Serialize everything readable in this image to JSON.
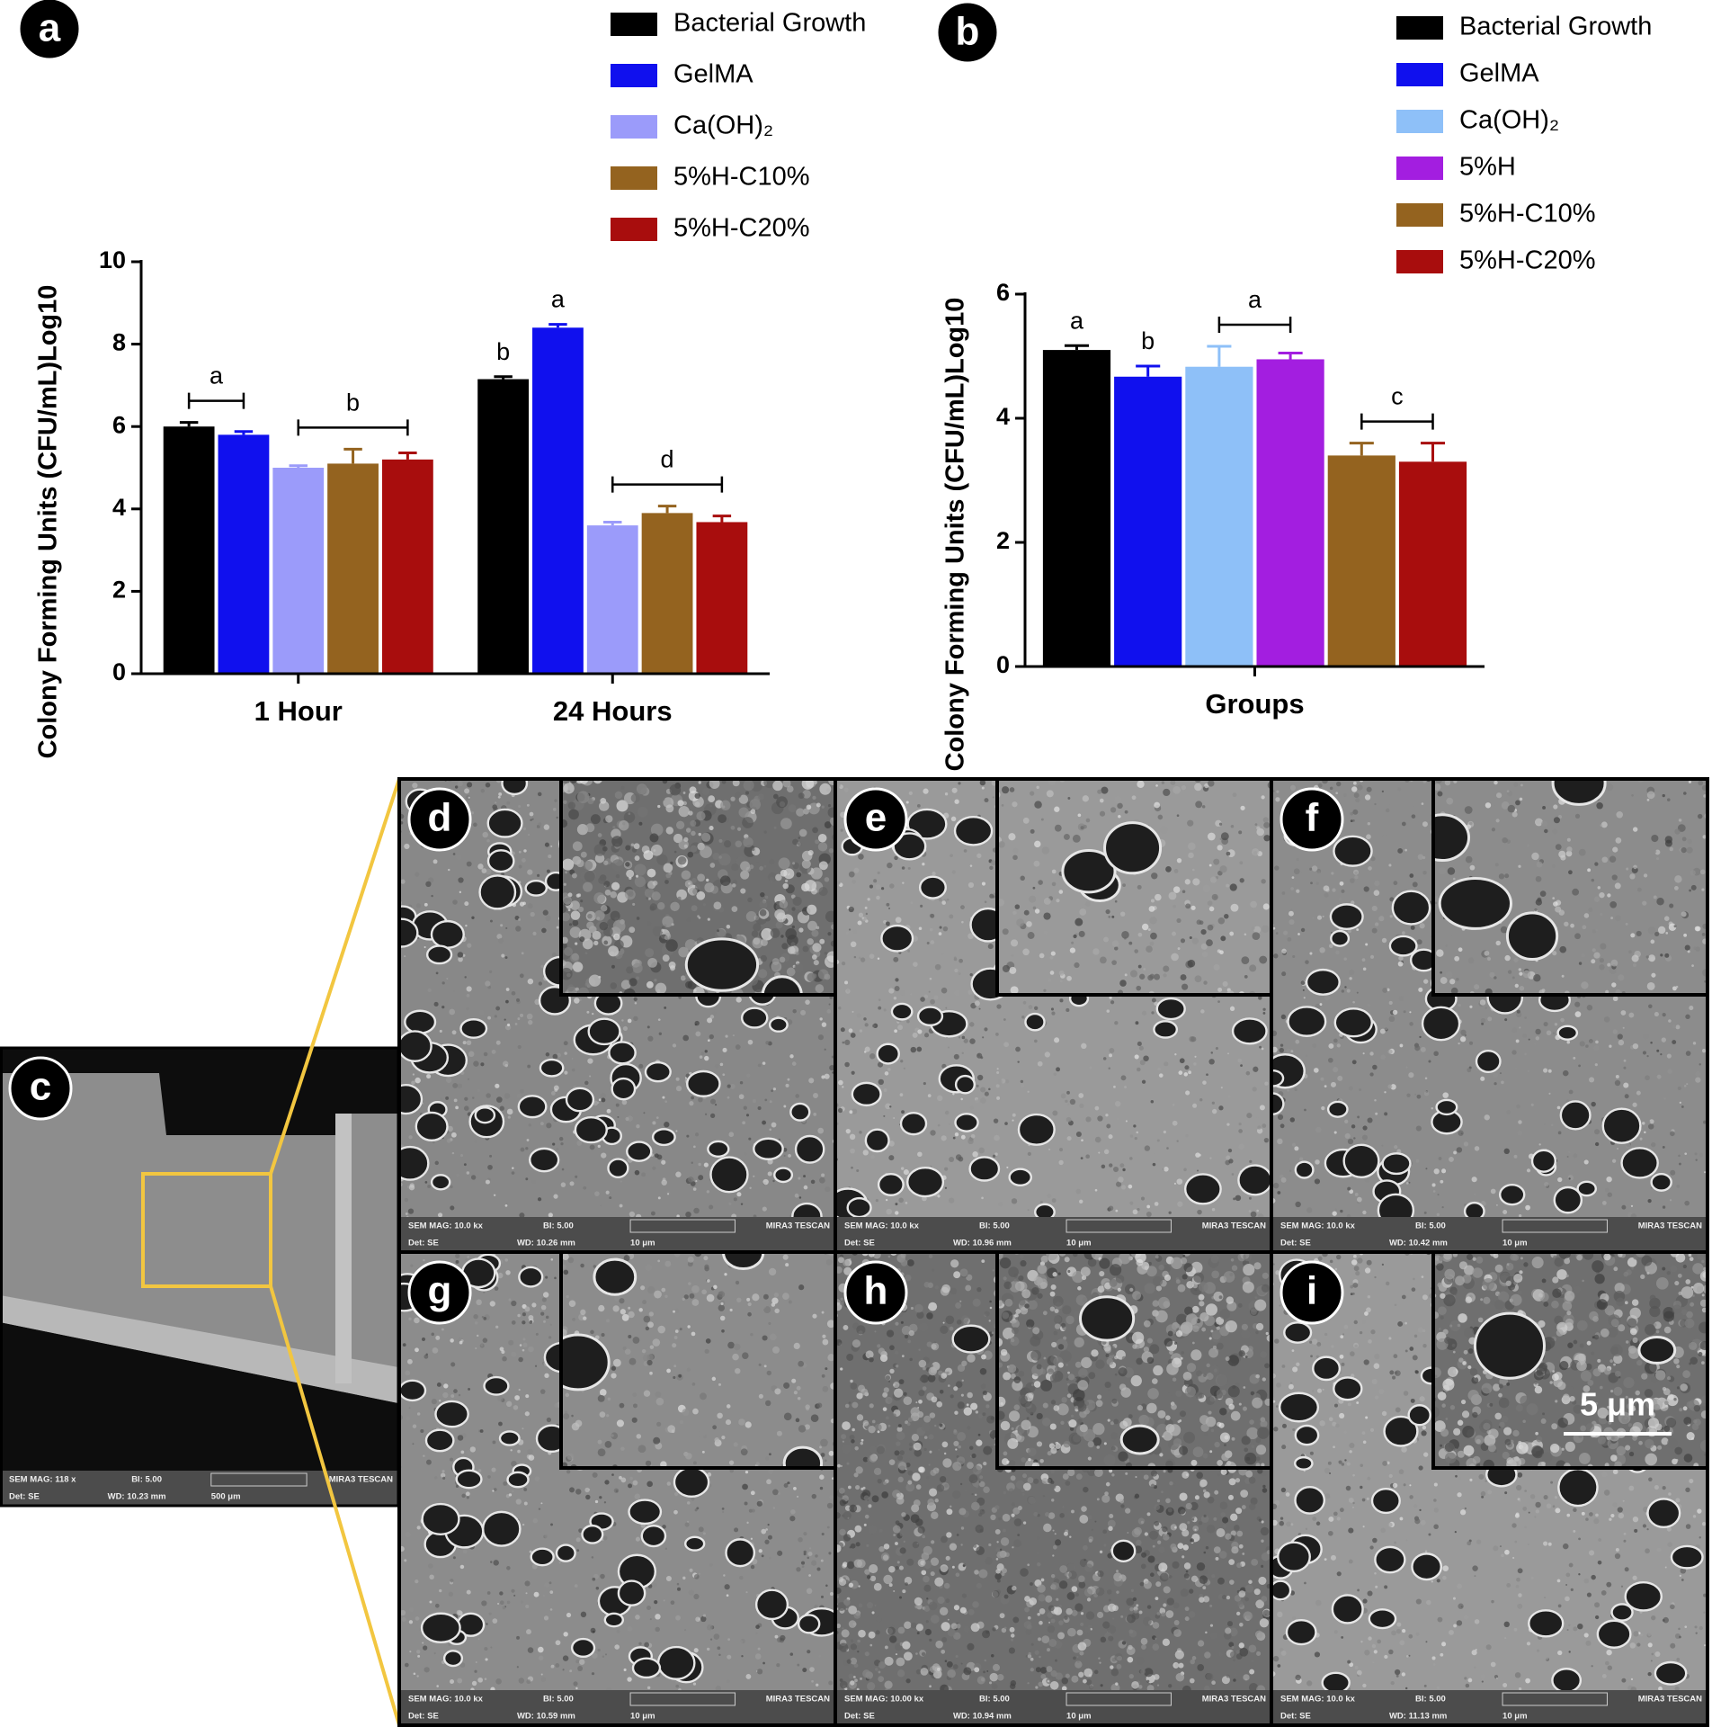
{
  "chart_data": [
    {
      "type": "bar",
      "panel": "a",
      "y_label": "Colony Forming Units (CFU/mL)Log10",
      "categories": [
        "1 Hour",
        "24 Hours"
      ],
      "series": [
        {
          "name": "Bacterial Growth",
          "color": "#000000",
          "values": [
            6.0,
            7.15
          ],
          "errors": [
            0.1,
            0.06
          ]
        },
        {
          "name": "GelMA",
          "color": "#1010ee",
          "values": [
            5.8,
            8.4
          ],
          "errors": [
            0.08,
            0.08
          ]
        },
        {
          "name": "Ca(OH)₂",
          "color": "#9b9bfa",
          "values": [
            5.0,
            3.6
          ],
          "errors": [
            0.05,
            0.08
          ]
        },
        {
          "name": "5%H-C10%",
          "color": "#94631f",
          "values": [
            5.1,
            3.9
          ],
          "errors": [
            0.35,
            0.17
          ]
        },
        {
          "name": "5%H-C20%",
          "color": "#a80d0d",
          "values": [
            5.2,
            3.68
          ],
          "errors": [
            0.16,
            0.15
          ]
        }
      ],
      "ylim": [
        0,
        10
      ],
      "yticks": [
        0,
        2,
        4,
        6,
        8,
        10
      ],
      "annotations": [
        {
          "text": "a",
          "category": 0,
          "series": [
            0,
            1
          ]
        },
        {
          "text": "b",
          "category": 0,
          "series": [
            2,
            4
          ]
        },
        {
          "text": "b",
          "category": 1,
          "series": [
            0
          ]
        },
        {
          "text": "a",
          "category": 1,
          "series": [
            1
          ]
        },
        {
          "text": "d",
          "category": 1,
          "series": [
            2,
            4
          ]
        }
      ]
    },
    {
      "type": "bar",
      "panel": "b",
      "y_label": "Colony Forming Units (CFU/mL)Log10",
      "categories": [
        "Groups"
      ],
      "series": [
        {
          "name": "Bacterial Growth",
          "color": "#000000",
          "values": [
            5.1
          ],
          "errors": [
            0.07
          ]
        },
        {
          "name": "GelMA",
          "color": "#1010ee",
          "values": [
            4.67
          ],
          "errors": [
            0.17
          ]
        },
        {
          "name": "Ca(OH)₂",
          "color": "#8ec0f8",
          "values": [
            4.83
          ],
          "errors": [
            0.33
          ]
        },
        {
          "name": "5%H",
          "color": "#a31ee0",
          "values": [
            4.95
          ],
          "errors": [
            0.1
          ]
        },
        {
          "name": "5%H-C10%",
          "color": "#94631f",
          "values": [
            3.4
          ],
          "errors": [
            0.2
          ]
        },
        {
          "name": "5%H-C20%",
          "color": "#a80d0d",
          "values": [
            3.3
          ],
          "errors": [
            0.3
          ]
        }
      ],
      "ylim": [
        0,
        6
      ],
      "yticks": [
        0,
        2,
        4,
        6
      ],
      "annotations": [
        {
          "text": "a",
          "category": 0,
          "series": [
            0
          ]
        },
        {
          "text": "b",
          "category": 0,
          "series": [
            1
          ]
        },
        {
          "text": "a",
          "category": 0,
          "series": [
            2,
            3
          ]
        },
        {
          "text": "c",
          "category": 0,
          "series": [
            4,
            5
          ]
        }
      ]
    }
  ],
  "sem_panels": [
    {
      "label": "c",
      "mag": "SEM MAG: 118 x",
      "bi": "BI: 5.00",
      "brand": "MIRA3 TESCAN",
      "det": "Det: SE",
      "wd": "WD: 10.23 mm",
      "scale": "500 μm"
    },
    {
      "label": "d",
      "mag": "SEM MAG: 10.0 kx",
      "bi": "BI: 5.00",
      "brand": "MIRA3 TESCAN",
      "det": "Det: SE",
      "wd": "WD: 10.26 mm",
      "scale": "10 μm"
    },
    {
      "label": "e",
      "mag": "SEM MAG: 10.0 kx",
      "bi": "BI: 5.00",
      "brand": "MIRA3 TESCAN",
      "det": "Det: SE",
      "wd": "WD: 10.96 mm",
      "scale": "10 μm"
    },
    {
      "label": "f",
      "mag": "SEM MAG: 10.0 kx",
      "bi": "BI: 5.00",
      "brand": "MIRA3 TESCAN",
      "det": "Det: SE",
      "wd": "WD: 10.42 mm",
      "scale": "10 μm"
    },
    {
      "label": "g",
      "mag": "SEM MAG: 10.0 kx",
      "bi": "BI: 5.00",
      "brand": "MIRA3 TESCAN",
      "det": "Det: SE",
      "wd": "WD: 10.59 mm",
      "scale": "10 μm"
    },
    {
      "label": "h",
      "mag": "SEM MAG: 10.00 kx",
      "bi": "BI: 5.00",
      "brand": "MIRA3 TESCAN",
      "det": "Det: SE",
      "wd": "WD: 10.94 mm",
      "scale": "10 μm"
    },
    {
      "label": "i",
      "mag": "SEM MAG: 10.0 kx",
      "bi": "BI: 5.00",
      "brand": "MIRA3 TESCAN",
      "det": "Det: SE",
      "wd": "WD: 11.13 mm",
      "scale": "10 μm",
      "inset_scale": "5 μm"
    }
  ]
}
